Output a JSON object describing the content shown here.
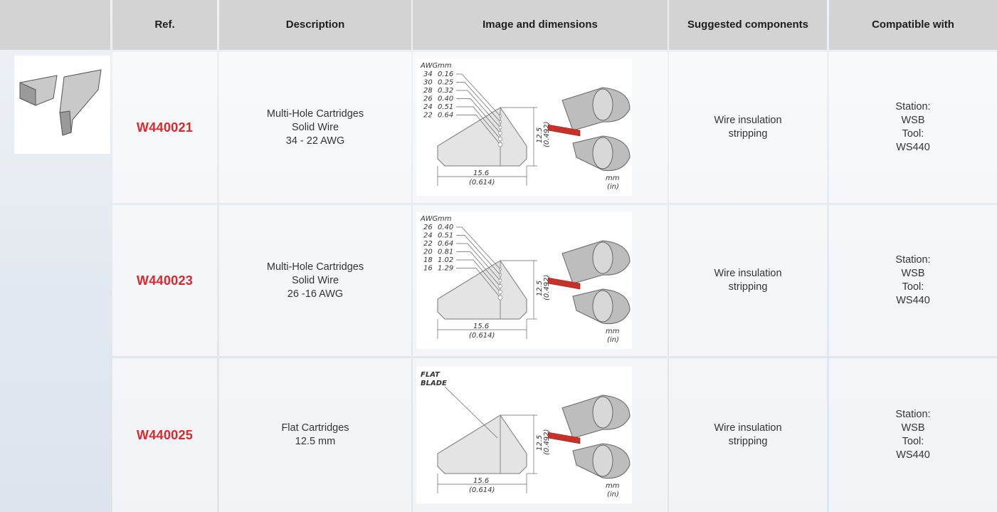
{
  "table": {
    "headers": [
      "Ref.",
      "Description",
      "Image and dimensions",
      "Suggested components",
      "Compatible with"
    ],
    "rows": [
      {
        "ref": "W440021",
        "description": [
          "Multi-Hole Cartridges",
          "Solid Wire",
          "34 - 22 AWG"
        ],
        "diagram": {
          "header": [
            "AWG",
            "mm"
          ],
          "gauges": [
            [
              "34",
              "0.16"
            ],
            [
              "30",
              "0.25"
            ],
            [
              "28",
              "0.32"
            ],
            [
              "26",
              "0.40"
            ],
            [
              "24",
              "0.51"
            ],
            [
              "22",
              "0.64"
            ]
          ],
          "height": "12.5",
          "height_in": "(0.492)",
          "width": "15.6",
          "width_in": "(0.614)",
          "unit": "mm",
          "unit_in": "(in)"
        },
        "components": [
          "Wire insulation",
          "stripping"
        ],
        "compatible": [
          "Station:",
          "WSB",
          "Tool:",
          "WS440"
        ]
      },
      {
        "ref": "W440023",
        "description": [
          "Multi-Hole Cartridges",
          "Solid Wire",
          "26 -16 AWG"
        ],
        "diagram": {
          "header": [
            "AWG",
            "mm"
          ],
          "gauges": [
            [
              "26",
              "0.40"
            ],
            [
              "24",
              "0.51"
            ],
            [
              "22",
              "0.64"
            ],
            [
              "20",
              "0.81"
            ],
            [
              "18",
              "1.02"
            ],
            [
              "16",
              "1.29"
            ]
          ],
          "height": "12.5",
          "height_in": "(0.492)",
          "width": "15.6",
          "width_in": "(0.614)",
          "unit": "mm",
          "unit_in": "(in)"
        },
        "components": [
          "Wire insulation",
          "stripping"
        ],
        "compatible": [
          "Station:",
          "WSB",
          "Tool:",
          "WS440"
        ]
      },
      {
        "ref": "W440025",
        "description": [
          "Flat Cartridges",
          "12.5 mm"
        ],
        "diagram": {
          "label": [
            "FLAT",
            "BLADE"
          ],
          "height": "12.5",
          "height_in": "(0.492)",
          "width": "15.6",
          "width_in": "(0.614)",
          "unit": "mm",
          "unit_in": "(in)"
        },
        "components": [
          "Wire insulation",
          "stripping"
        ],
        "compatible": [
          "Station:",
          "WSB",
          "Tool:",
          "WS440"
        ]
      }
    ]
  }
}
